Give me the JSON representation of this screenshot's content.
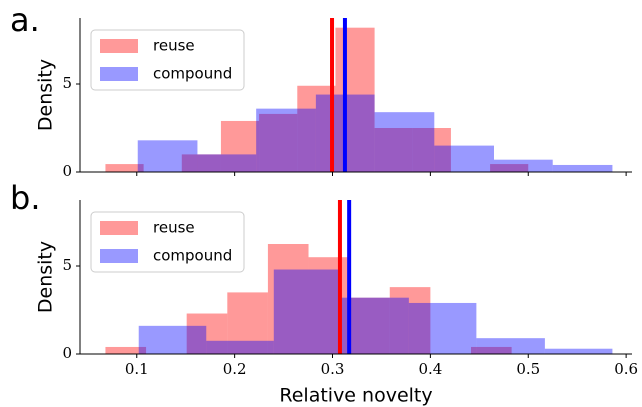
{
  "chart_data": [
    {
      "type": "histogram",
      "panel_label": "a.",
      "ylabel": "Density",
      "xlim": [
        0.042,
        0.606
      ],
      "ylim": [
        0,
        8.75
      ],
      "xticks": [
        0.1,
        0.2,
        0.3,
        0.4,
        0.5,
        0.6
      ],
      "yticks": [
        0,
        5
      ],
      "series": [
        {
          "name": "reuse",
          "color": "#ff0000",
          "mean": 0.2995,
          "bins": [
            0.068,
            0.107,
            0.146,
            0.186,
            0.225,
            0.264,
            0.303,
            0.343,
            0.382,
            0.421,
            0.461,
            0.5
          ],
          "values": [
            0.45,
            0,
            1.0,
            2.9,
            3.3,
            4.9,
            8.2,
            2.5,
            2.5,
            0,
            0.45
          ]
        },
        {
          "name": "compound",
          "color": "#0000ff",
          "mean": 0.3127,
          "bins": [
            0.101,
            0.162,
            0.222,
            0.283,
            0.343,
            0.404,
            0.465,
            0.525,
            0.586
          ],
          "values": [
            1.8,
            1.0,
            3.6,
            4.4,
            3.4,
            1.5,
            0.7,
            0.4
          ]
        }
      ]
    },
    {
      "type": "histogram",
      "panel_label": "b.",
      "ylabel": "Density",
      "xlabel": "Relative novelty",
      "xlim": [
        0.042,
        0.606
      ],
      "ylim": [
        0,
        8.75
      ],
      "xticks": [
        0.1,
        0.2,
        0.3,
        0.4,
        0.5,
        0.6
      ],
      "yticks": [
        0,
        5
      ],
      "series": [
        {
          "name": "reuse",
          "color": "#ff0000",
          "mean": 0.3076,
          "bins": [
            0.068,
            0.1095,
            0.151,
            0.1925,
            0.234,
            0.2755,
            0.317,
            0.3585,
            0.4,
            0.4415,
            0.483
          ],
          "values": [
            0.4,
            0,
            2.3,
            3.5,
            6.25,
            5.5,
            3.2,
            3.8,
            0,
            0.4
          ]
        },
        {
          "name": "compound",
          "color": "#0000ff",
          "mean": 0.317,
          "bins": [
            0.102,
            0.171,
            0.24,
            0.309,
            0.378,
            0.447,
            0.517,
            0.586
          ],
          "values": [
            1.6,
            0.75,
            4.8,
            3.2,
            2.9,
            0.9,
            0.3
          ]
        }
      ]
    }
  ]
}
